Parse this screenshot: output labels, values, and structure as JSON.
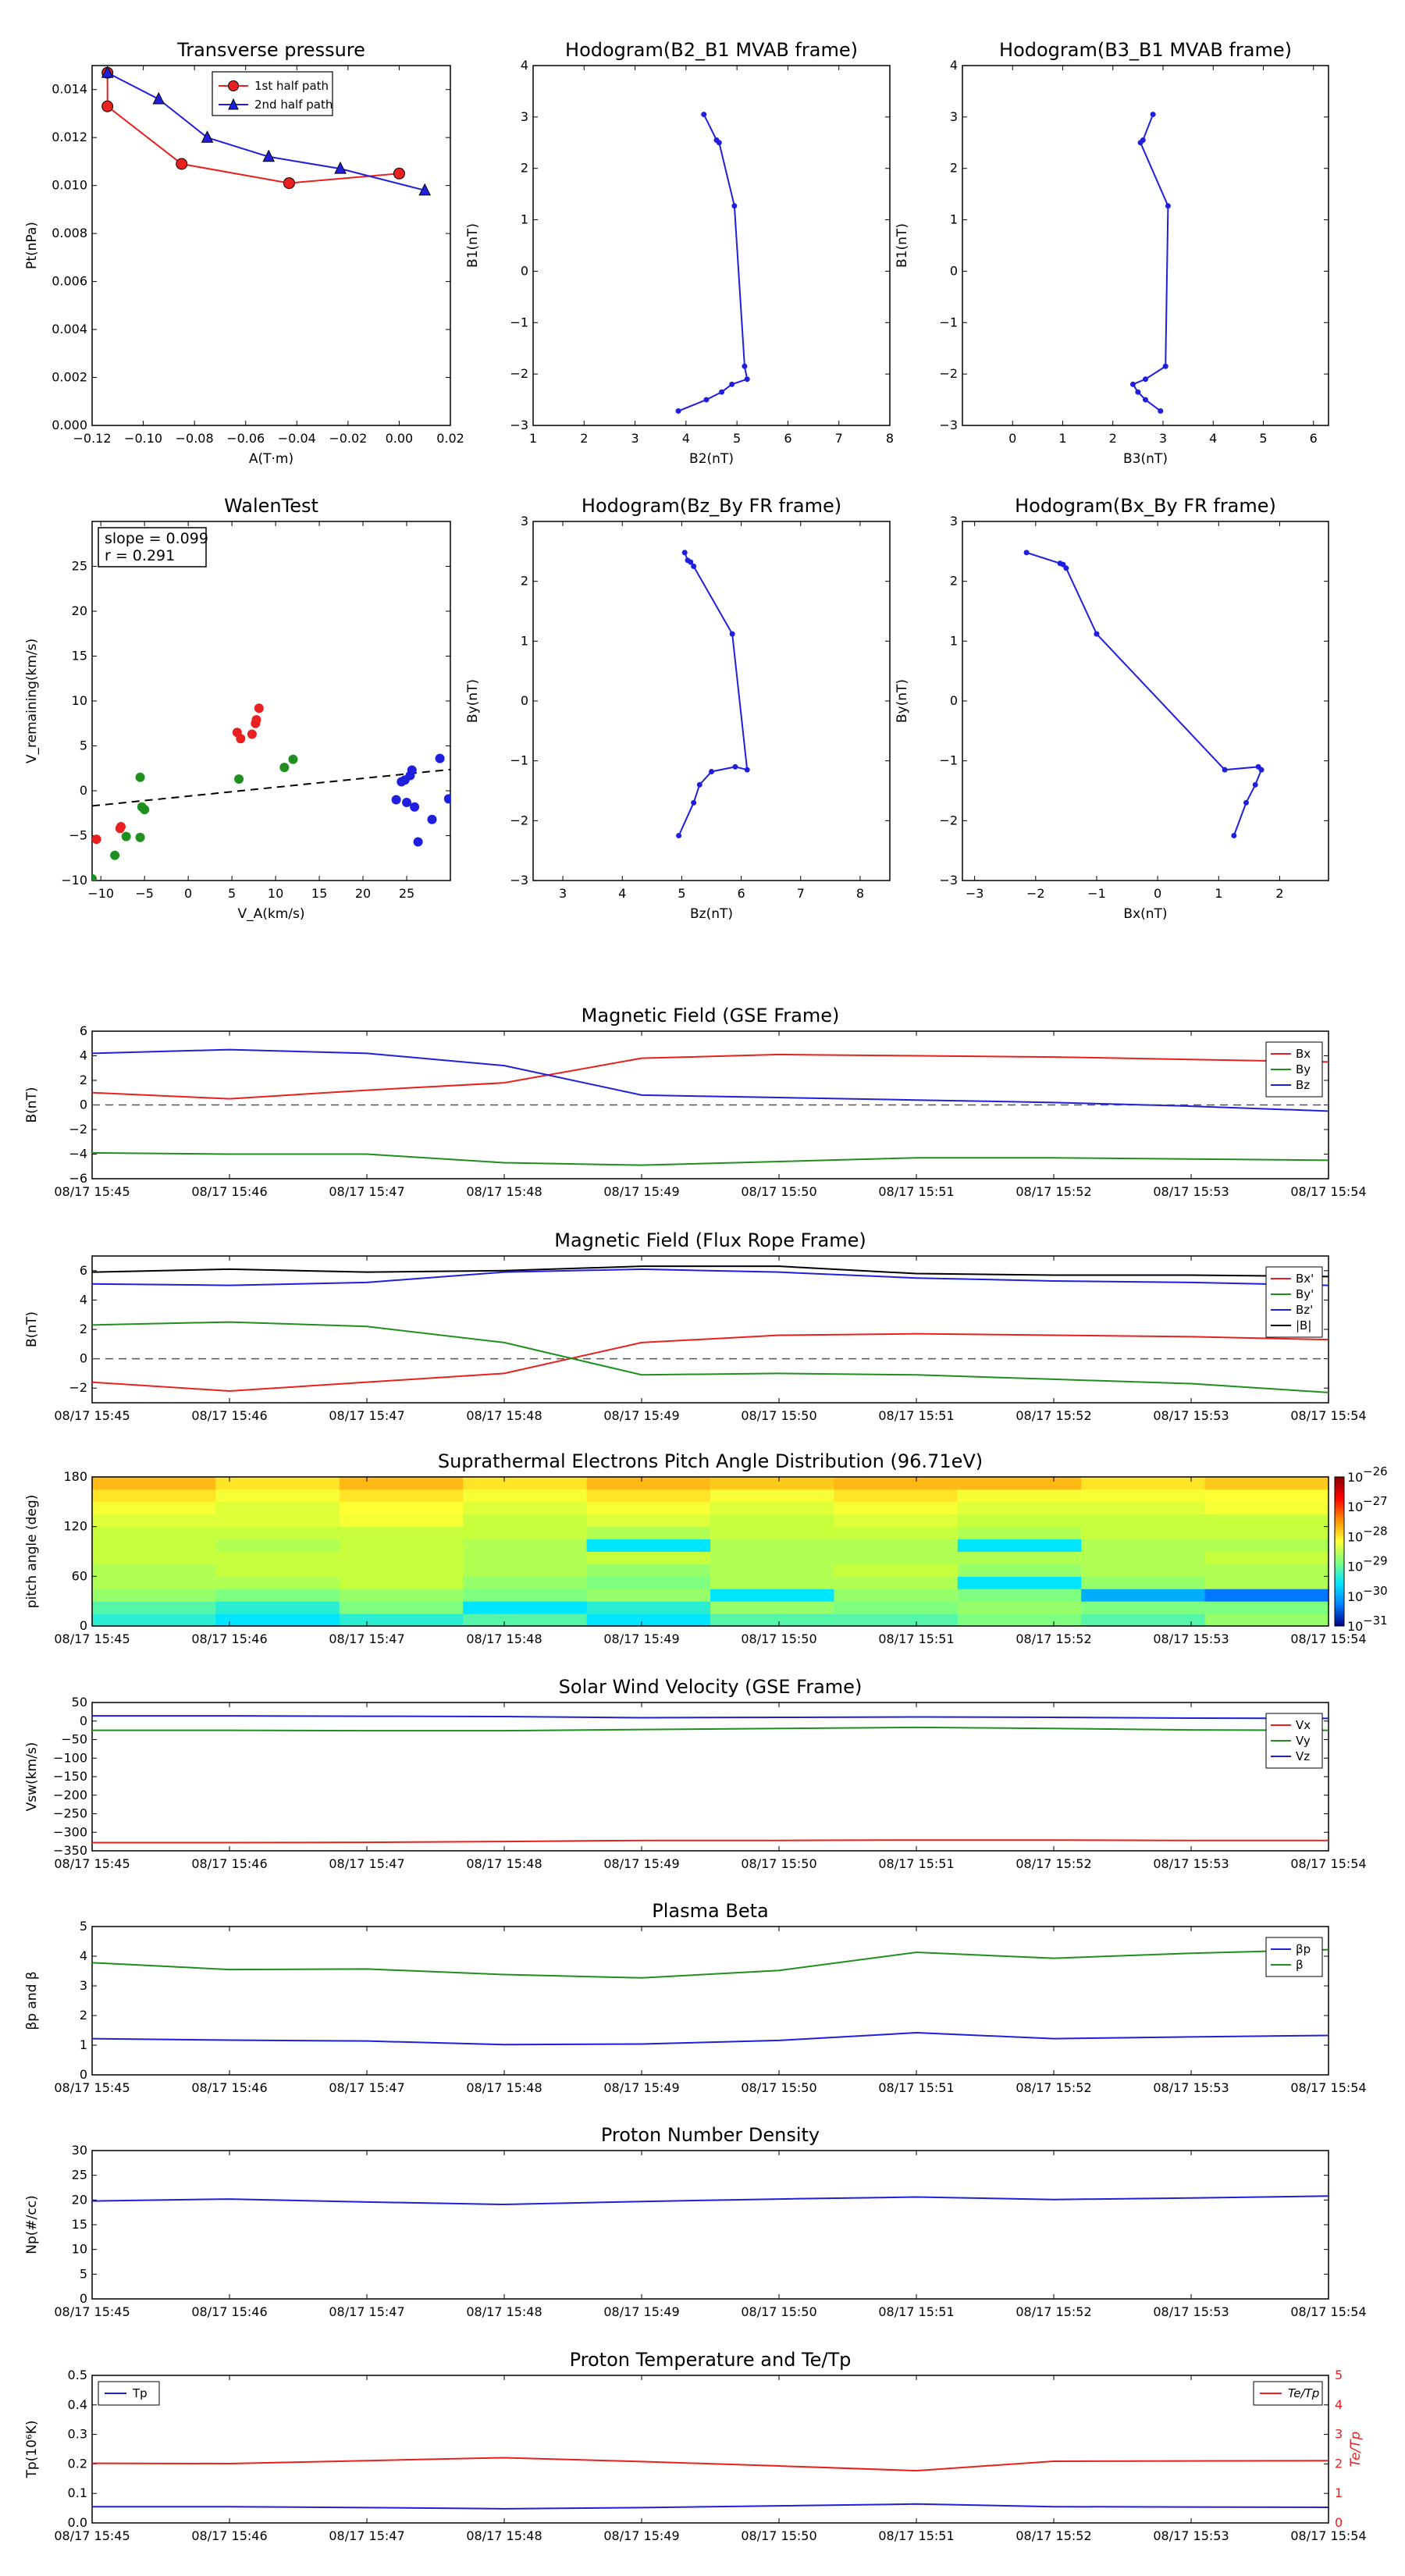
{
  "chart_data": [
    {
      "id": "tp",
      "type": "line",
      "title": "Transverse pressure",
      "xlabel": "A(T·m)",
      "ylabel": "Pt(nPa)",
      "xlim": [
        -0.12,
        0.02
      ],
      "ylim": [
        0.0,
        0.015
      ],
      "xticks": [
        -0.12,
        -0.1,
        -0.08,
        -0.06,
        -0.04,
        -0.02,
        0.0,
        0.02
      ],
      "xtick_labels": [
        "−0.12",
        "−0.10",
        "−0.08",
        "−0.06",
        "−0.04",
        "−0.02",
        "0.00",
        "0.02"
      ],
      "yticks": [
        0,
        0.002,
        0.004,
        0.006,
        0.008,
        0.01,
        0.012,
        0.014
      ],
      "ytick_labels": [
        "0.000",
        "0.002",
        "0.004",
        "0.006",
        "0.008",
        "0.010",
        "0.012",
        "0.014"
      ],
      "legend": "upper center",
      "series": [
        {
          "name": "1st half path",
          "color": "#e8201f",
          "marker": "circle",
          "x": [
            -0.114,
            -0.114,
            -0.085,
            -0.043,
            0.0
          ],
          "y": [
            0.0147,
            0.0133,
            0.0109,
            0.0101,
            0.0105
          ]
        },
        {
          "name": "2nd half path",
          "color": "#1f1fdd",
          "marker": "triangle",
          "x": [
            -0.114,
            -0.094,
            -0.075,
            -0.051,
            -0.023,
            0.01
          ],
          "y": [
            0.0147,
            0.0136,
            0.012,
            0.0112,
            0.0107,
            0.0098
          ]
        }
      ]
    },
    {
      "id": "h1",
      "type": "line",
      "title": "Hodogram(B2_B1 MVAB frame)",
      "xlabel": "B2(nT)",
      "ylabel": "B1(nT)",
      "xlim": [
        1,
        8
      ],
      "ylim": [
        -3,
        4
      ],
      "xticks": [
        1,
        2,
        3,
        4,
        5,
        6,
        7,
        8
      ],
      "xtick_labels": [
        "1",
        "2",
        "3",
        "4",
        "5",
        "6",
        "7",
        "8"
      ],
      "yticks": [
        -3,
        -2,
        -1,
        0,
        1,
        2,
        3,
        4
      ],
      "ytick_labels": [
        "−3",
        "−2",
        "−1",
        "0",
        "1",
        "2",
        "3",
        "4"
      ],
      "series": [
        {
          "color": "#1f1fdd",
          "marker": "dot",
          "x": [
            4.35,
            4.6,
            4.65,
            4.95,
            5.15,
            5.2,
            4.9,
            4.7,
            4.4,
            3.85
          ],
          "y": [
            3.05,
            2.55,
            2.5,
            1.27,
            -1.85,
            -2.1,
            -2.2,
            -2.35,
            -2.5,
            -2.72
          ]
        }
      ]
    },
    {
      "id": "h2",
      "type": "line",
      "title": "Hodogram(B3_B1 MVAB frame)",
      "xlabel": "B3(nT)",
      "ylabel": "B1(nT)",
      "xlim": [
        -1,
        6.3
      ],
      "ylim": [
        -3,
        4
      ],
      "xticks": [
        0,
        1,
        2,
        3,
        4,
        5,
        6
      ],
      "xtick_labels": [
        "0",
        "1",
        "2",
        "3",
        "4",
        "5",
        "6"
      ],
      "yticks": [
        -3,
        -2,
        -1,
        0,
        1,
        2,
        3,
        4
      ],
      "ytick_labels": [
        "−3",
        "−2",
        "−1",
        "0",
        "1",
        "2",
        "3",
        "4"
      ],
      "series": [
        {
          "color": "#1f1fdd",
          "marker": "dot",
          "x": [
            2.8,
            2.6,
            2.55,
            3.1,
            3.05,
            2.65,
            2.4,
            2.5,
            2.65,
            2.95
          ],
          "y": [
            3.05,
            2.55,
            2.5,
            1.27,
            -1.85,
            -2.1,
            -2.2,
            -2.35,
            -2.5,
            -2.72
          ]
        }
      ]
    },
    {
      "id": "walen",
      "type": "scatter",
      "title": "WalenTest",
      "xlabel": "V_A(km/s)",
      "ylabel": "V_remaining(km/s)",
      "xlim": [
        -11,
        30
      ],
      "ylim": [
        -10,
        30
      ],
      "xticks": [
        -10,
        -5,
        0,
        5,
        10,
        15,
        20,
        25
      ],
      "xtick_labels": [
        "−10",
        "−5",
        "0",
        "5",
        "10",
        "15",
        "20",
        "25"
      ],
      "yticks": [
        -10,
        -5,
        0,
        5,
        10,
        15,
        20,
        25
      ],
      "ytick_labels": [
        "−10",
        "−5",
        "0",
        "5",
        "10",
        "15",
        "20",
        "25"
      ],
      "annotation": [
        "slope = 0.099",
        "r = 0.291"
      ],
      "fit": {
        "slope": 0.099,
        "intercept": -0.6,
        "color": "#000000",
        "style": "dashed"
      },
      "series": [
        {
          "color": "#e8201f",
          "x": [
            -10.5,
            -7.7,
            -7.8,
            5.6,
            6.0,
            7.3,
            7.7,
            7.8,
            8.1
          ],
          "y": [
            -5.4,
            -4.0,
            -4.2,
            6.5,
            5.8,
            6.3,
            7.5,
            7.9,
            9.2
          ]
        },
        {
          "color": "#1f8f1f",
          "x": [
            -11.0,
            -8.4,
            -7.1,
            -5.5,
            -5.5,
            -5.3,
            -5.0,
            5.8,
            11.0,
            12.0
          ],
          "y": [
            -9.8,
            -7.2,
            -5.1,
            1.5,
            -5.2,
            -1.8,
            -2.1,
            1.3,
            2.6,
            3.5
          ]
        },
        {
          "color": "#1f1fdd",
          "x": [
            23.8,
            24.4,
            24.8,
            25.0,
            25.4,
            25.6,
            25.9,
            26.3,
            27.9,
            28.8,
            29.8
          ],
          "y": [
            -1.0,
            1.0,
            1.2,
            -1.3,
            1.7,
            2.3,
            -1.8,
            -5.7,
            -3.2,
            3.6,
            -0.9
          ]
        }
      ]
    },
    {
      "id": "h3",
      "type": "line",
      "title": "Hodogram(Bz_By FR frame)",
      "xlabel": "Bz(nT)",
      "ylabel": "By(nT)",
      "xlim": [
        2.5,
        8.5
      ],
      "ylim": [
        -3,
        3
      ],
      "xticks": [
        3,
        4,
        5,
        6,
        7,
        8
      ],
      "xtick_labels": [
        "3",
        "4",
        "5",
        "6",
        "7",
        "8"
      ],
      "yticks": [
        -3,
        -2,
        -1,
        0,
        1,
        2,
        3
      ],
      "ytick_labels": [
        "−3",
        "−2",
        "−1",
        "0",
        "1",
        "2",
        "3"
      ],
      "series": [
        {
          "color": "#1f1fdd",
          "marker": "dot",
          "x": [
            5.05,
            5.1,
            5.15,
            5.2,
            5.85,
            6.1,
            5.9,
            5.5,
            5.3,
            5.2,
            4.95
          ],
          "y": [
            2.48,
            2.35,
            2.32,
            2.25,
            1.12,
            -1.15,
            -1.1,
            -1.18,
            -1.4,
            -1.7,
            -2.25
          ]
        }
      ]
    },
    {
      "id": "h4",
      "type": "line",
      "title": "Hodogram(Bx_By FR frame)",
      "xlabel": "Bx(nT)",
      "ylabel": "By(nT)",
      "xlim": [
        -3.2,
        2.8
      ],
      "ylim": [
        -3,
        3
      ],
      "xticks": [
        -3,
        -2,
        -1,
        0,
        1,
        2
      ],
      "xtick_labels": [
        "−3",
        "−2",
        "−1",
        "0",
        "1",
        "2"
      ],
      "yticks": [
        -3,
        -2,
        -1,
        0,
        1,
        2,
        3
      ],
      "ytick_labels": [
        "−3",
        "−2",
        "−1",
        "0",
        "1",
        "2",
        "3"
      ],
      "series": [
        {
          "color": "#1f1fdd",
          "marker": "dot",
          "x": [
            -2.15,
            -1.6,
            -1.55,
            -1.5,
            -1.0,
            1.1,
            1.65,
            1.7,
            1.6,
            1.45,
            1.25
          ],
          "y": [
            2.48,
            2.3,
            2.28,
            2.22,
            1.12,
            -1.15,
            -1.1,
            -1.15,
            -1.4,
            -1.7,
            -2.25
          ]
        }
      ]
    },
    {
      "id": "mag_gse",
      "type": "line",
      "title": "Magnetic Field (GSE Frame)",
      "ylabel": "B(nT)",
      "ylim": [
        -6,
        6
      ],
      "yticks": [
        -6,
        -4,
        -2,
        0,
        2,
        4,
        6
      ],
      "ytick_labels": [
        "−6",
        "−4",
        "−2",
        "0",
        "2",
        "4",
        "6"
      ],
      "zero_line": true,
      "legend": "right",
      "series": [
        {
          "name": "Bx",
          "color": "#e8201f",
          "values": [
            1.0,
            0.5,
            1.2,
            1.8,
            3.8,
            4.1,
            4.0,
            3.9,
            3.7,
            3.5
          ]
        },
        {
          "name": "By",
          "color": "#1f8f1f",
          "values": [
            -3.9,
            -4.0,
            -4.0,
            -4.7,
            -4.9,
            -4.6,
            -4.3,
            -4.3,
            -4.4,
            -4.5
          ]
        },
        {
          "name": "Bz",
          "color": "#1f1fdd",
          "values": [
            4.2,
            4.5,
            4.2,
            3.2,
            0.8,
            0.6,
            0.4,
            0.2,
            -0.1,
            -0.5
          ]
        }
      ]
    },
    {
      "id": "mag_fr",
      "type": "line",
      "title": "Magnetic Field (Flux Rope Frame)",
      "ylabel": "B(nT)",
      "ylim": [
        -3,
        7
      ],
      "yticks": [
        -2,
        0,
        2,
        4,
        6
      ],
      "ytick_labels": [
        "−2",
        "0",
        "2",
        "4",
        "6"
      ],
      "zero_line": true,
      "legend": "right",
      "series": [
        {
          "name": "Bx'",
          "color": "#e8201f",
          "values": [
            -1.6,
            -2.2,
            -1.6,
            -1.0,
            1.1,
            1.6,
            1.7,
            1.6,
            1.5,
            1.3
          ]
        },
        {
          "name": "By'",
          "color": "#1f8f1f",
          "values": [
            2.3,
            2.5,
            2.2,
            1.1,
            -1.1,
            -1.0,
            -1.1,
            -1.4,
            -1.7,
            -2.3
          ]
        },
        {
          "name": "Bz'",
          "color": "#1f1fdd",
          "values": [
            5.1,
            5.0,
            5.2,
            5.9,
            6.1,
            5.9,
            5.5,
            5.3,
            5.2,
            5.0
          ]
        },
        {
          "name": "|B|",
          "color": "#000000",
          "values": [
            5.9,
            6.1,
            5.9,
            6.0,
            6.3,
            6.3,
            5.8,
            5.7,
            5.7,
            5.6
          ]
        }
      ]
    },
    {
      "id": "pad",
      "type": "heatmap",
      "title": "Suprathermal Electrons Pitch Angle Distribution (96.71eV)",
      "ylabel": "pitch angle (deg)",
      "ylim": [
        0,
        180
      ],
      "yticks": [
        0,
        60,
        120,
        180
      ],
      "ytick_labels": [
        "0",
        "60",
        "120",
        "180"
      ],
      "colorbar_ticks": [
        "10",
        "10",
        "10",
        "10",
        "10",
        "10"
      ],
      "colorbar_exponents": [
        "−26",
        "−27",
        "−28",
        "−29",
        "−30",
        "−31"
      ],
      "colorbar_colors": [
        "#8b0000",
        "#ff0000",
        "#ff8c00",
        "#ffff33",
        "#7fff7f",
        "#00e5ff",
        "#0080ff",
        "#00008b"
      ],
      "matrix": [
        [
          0.35,
          0.3,
          0.35,
          0.4,
          0.3,
          0.4,
          0.4,
          0.45,
          0.4,
          0.5
        ],
        [
          0.4,
          0.35,
          0.45,
          0.3,
          0.35,
          0.5,
          0.45,
          0.5,
          0.45,
          0.45
        ],
        [
          0.5,
          0.45,
          0.5,
          0.45,
          0.5,
          0.3,
          0.5,
          0.45,
          0.25,
          0.2
        ],
        [
          0.55,
          0.55,
          0.6,
          0.5,
          0.45,
          0.55,
          0.55,
          0.3,
          0.5,
          0.55
        ],
        [
          0.55,
          0.6,
          0.6,
          0.55,
          0.5,
          0.55,
          0.6,
          0.5,
          0.55,
          0.55
        ],
        [
          0.6,
          0.6,
          0.6,
          0.55,
          0.6,
          0.55,
          0.55,
          0.55,
          0.55,
          0.6
        ],
        [
          0.6,
          0.55,
          0.6,
          0.55,
          0.3,
          0.55,
          0.55,
          0.3,
          0.55,
          0.55
        ],
        [
          0.6,
          0.6,
          0.6,
          0.6,
          0.55,
          0.6,
          0.6,
          0.55,
          0.6,
          0.6
        ],
        [
          0.65,
          0.65,
          0.7,
          0.6,
          0.65,
          0.6,
          0.65,
          0.6,
          0.6,
          0.6
        ],
        [
          0.7,
          0.65,
          0.72,
          0.65,
          0.7,
          0.65,
          0.7,
          0.65,
          0.65,
          0.7
        ],
        [
          0.75,
          0.7,
          0.75,
          0.7,
          0.75,
          0.7,
          0.75,
          0.7,
          0.7,
          0.72
        ],
        [
          0.8,
          0.75,
          0.8,
          0.75,
          0.8,
          0.78,
          0.8,
          0.8,
          0.75,
          0.78
        ]
      ]
    },
    {
      "id": "vsw",
      "type": "line",
      "title": "Solar Wind Velocity (GSE Frame)",
      "ylabel": "Vsw(km/s)",
      "ylim": [
        -350,
        50
      ],
      "yticks": [
        -350,
        -300,
        -250,
        -200,
        -150,
        -100,
        -50,
        0,
        50
      ],
      "ytick_labels": [
        "−350",
        "−300",
        "−250",
        "−200",
        "−150",
        "−100",
        "−50",
        "0",
        "50"
      ],
      "legend": "right",
      "series": [
        {
          "name": "Vx",
          "color": "#e8201f",
          "values": [
            -328,
            -328,
            -327,
            -325,
            -322,
            -322,
            -321,
            -321,
            -322,
            -322
          ]
        },
        {
          "name": "Vy",
          "color": "#1f8f1f",
          "values": [
            -25,
            -25,
            -26,
            -26,
            -23,
            -20,
            -17,
            -20,
            -24,
            -25
          ]
        },
        {
          "name": "Vz",
          "color": "#1f1fdd",
          "values": [
            14,
            14,
            13,
            12,
            9,
            10,
            11,
            10,
            8,
            7
          ]
        }
      ]
    },
    {
      "id": "beta",
      "type": "line",
      "title": "Plasma Beta",
      "ylabel": "βp and β",
      "ylim": [
        0,
        5
      ],
      "yticks": [
        0,
        1,
        2,
        3,
        4,
        5
      ],
      "ytick_labels": [
        "0",
        "1",
        "2",
        "3",
        "4",
        "5"
      ],
      "legend": "right",
      "series": [
        {
          "name": "βp",
          "color": "#1f1fdd",
          "values": [
            1.22,
            1.17,
            1.14,
            1.02,
            1.04,
            1.16,
            1.42,
            1.22,
            1.28,
            1.33
          ]
        },
        {
          "name": "β",
          "color": "#1f8f1f",
          "values": [
            3.78,
            3.55,
            3.57,
            3.38,
            3.27,
            3.52,
            4.13,
            3.93,
            4.1,
            4.22
          ]
        }
      ]
    },
    {
      "id": "np",
      "type": "line",
      "title": "Proton Number Density",
      "ylabel": "Np(#/cc)",
      "ylim": [
        0,
        30
      ],
      "yticks": [
        0,
        5,
        10,
        15,
        20,
        25,
        30
      ],
      "ytick_labels": [
        "0",
        "5",
        "10",
        "15",
        "20",
        "25",
        "30"
      ],
      "series": [
        {
          "color": "#1f1fdd",
          "values": [
            19.8,
            20.2,
            19.6,
            19.1,
            19.7,
            20.2,
            20.6,
            20.1,
            20.4,
            20.8
          ]
        }
      ]
    },
    {
      "id": "temp",
      "type": "line",
      "title": "Proton Temperature and Te/Tp",
      "ylabel": "Tp(10⁶K)",
      "ylabel_right": "Te/Tp",
      "ylim": [
        0,
        0.5
      ],
      "yticks": [
        0,
        0.1,
        0.2,
        0.3,
        0.4,
        0.5
      ],
      "ytick_labels": [
        "0.0",
        "0.1",
        "0.2",
        "0.3",
        "0.4",
        "0.5"
      ],
      "ylim_right": [
        0,
        5
      ],
      "yticks_right": [
        0,
        1,
        2,
        3,
        4,
        5
      ],
      "ytick_labels_right": [
        "0",
        "1",
        "2",
        "3",
        "4",
        "5"
      ],
      "legend": "upper left / upper right",
      "series": [
        {
          "name": "Tp",
          "color": "#1f1fdd",
          "axis": "left",
          "values": [
            0.055,
            0.055,
            0.052,
            0.048,
            0.052,
            0.058,
            0.064,
            0.055,
            0.054,
            0.053
          ]
        },
        {
          "name": "Te/Tp",
          "color": "#e8201f",
          "axis": "right",
          "values": [
            2.02,
            2.01,
            2.11,
            2.21,
            2.08,
            1.93,
            1.77,
            2.09,
            2.1,
            2.11
          ]
        }
      ]
    }
  ],
  "time_axis": {
    "labels": [
      "08/17 15:45",
      "08/17 15:46",
      "08/17 15:47",
      "08/17 15:48",
      "08/17 15:49",
      "08/17 15:50",
      "08/17 15:51",
      "08/17 15:52",
      "08/17 15:53",
      "08/17 15:54"
    ]
  }
}
